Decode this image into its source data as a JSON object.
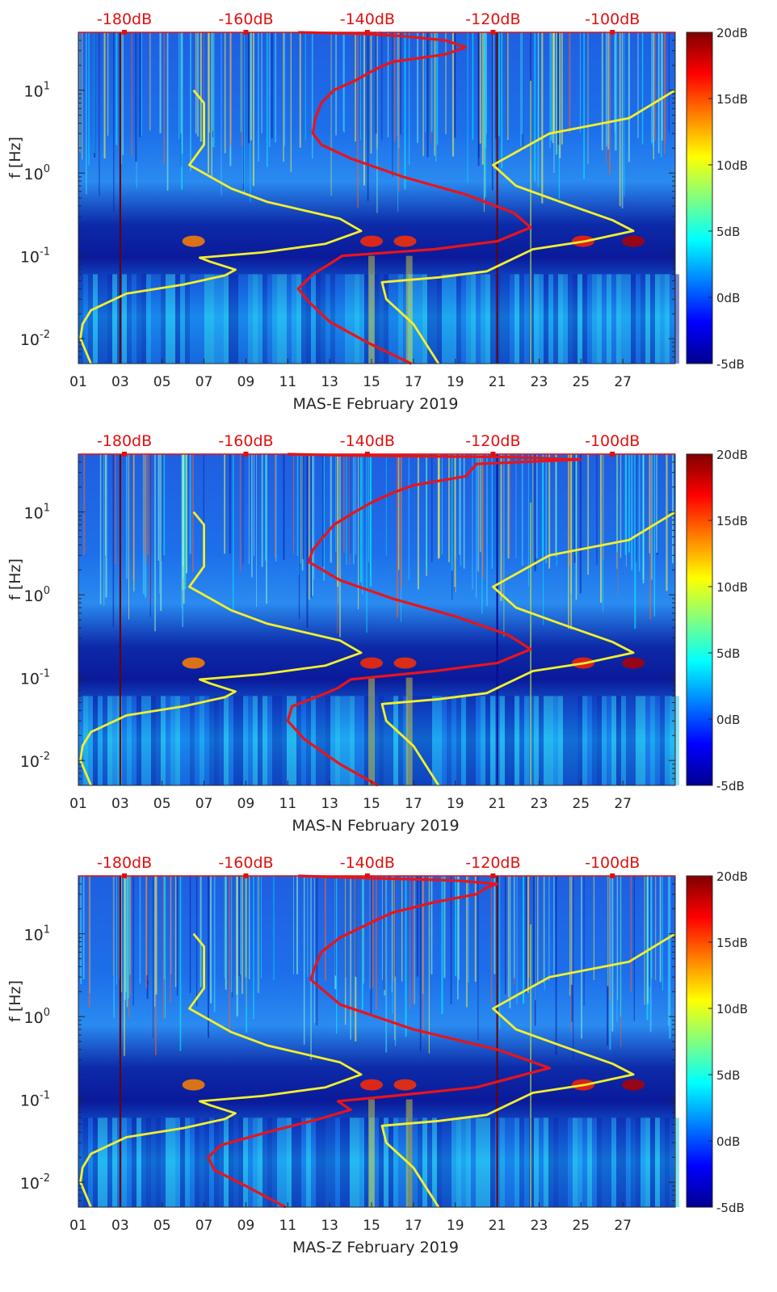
{
  "colormap": [
    "#00008f",
    "#0000ff",
    "#0080ff",
    "#00ffff",
    "#80ff80",
    "#ffff00",
    "#ff8000",
    "#ff0000",
    "#800000"
  ],
  "accent": {
    "red_line": "#e8141a",
    "yellow_line": "#f2ef2f",
    "top_axis_text": "#e01010"
  },
  "chart_data": [
    {
      "type": "heatmap",
      "title": "",
      "xlabel": "MAS-E February 2019",
      "ylabel": "f [Hz]",
      "xlim": [
        1,
        29.5
      ],
      "ylim": [
        0.005,
        50
      ],
      "yscale": "log",
      "x_ticks": [
        1,
        3,
        5,
        7,
        9,
        11,
        13,
        15,
        17,
        19,
        21,
        23,
        25,
        27
      ],
      "x_tick_labels": [
        "01",
        "03",
        "05",
        "07",
        "09",
        "11",
        "13",
        "15",
        "17",
        "19",
        "21",
        "23",
        "25",
        "27"
      ],
      "y_ticks": [
        0.01,
        0.1,
        1,
        10
      ],
      "y_tick_mantissa": [
        "10",
        "10",
        "10",
        "10"
      ],
      "y_tick_exponents": [
        "-2",
        "-1",
        "0",
        "1"
      ],
      "top_axis_ticks": [
        3.2,
        9,
        14.8,
        20.8,
        26.5
      ],
      "top_axis_labels": [
        "-180dB",
        "-160dB",
        "-140dB",
        "-120dB",
        "-100dB"
      ],
      "colorbar": {
        "range": [
          -5,
          20
        ],
        "ticks": [
          -5,
          0,
          5,
          10,
          15,
          20
        ],
        "labels": [
          "-5dB",
          "0dB",
          "5dB",
          "10dB",
          "15dB",
          "20dB"
        ]
      },
      "series": [
        {
          "name": "median PSD (red)",
          "color": "red",
          "points": [
            [
              16.9,
              0.005
            ],
            [
              14.8,
              0.009
            ],
            [
              13.0,
              0.016
            ],
            [
              12.0,
              0.028
            ],
            [
              11.5,
              0.04
            ],
            [
              12.2,
              0.06
            ],
            [
              13.0,
              0.08
            ],
            [
              13.6,
              0.1
            ],
            [
              18.0,
              0.12
            ],
            [
              21.0,
              0.15
            ],
            [
              22.6,
              0.22
            ],
            [
              21.8,
              0.33
            ],
            [
              19.5,
              0.55
            ],
            [
              16.5,
              0.9
            ],
            [
              14.0,
              1.5
            ],
            [
              12.6,
              2.2
            ],
            [
              12.2,
              3.0
            ],
            [
              12.3,
              4.5
            ],
            [
              12.6,
              7.0
            ],
            [
              13.2,
              10.0
            ],
            [
              14.2,
              13.0
            ],
            [
              15.2,
              18.0
            ],
            [
              16.0,
              22.0
            ],
            [
              18.5,
              27.0
            ],
            [
              19.5,
              33.0
            ],
            [
              18.5,
              40.0
            ],
            [
              16.5,
              45.0
            ],
            [
              14.5,
              48.0
            ],
            [
              11.5,
              50.0
            ]
          ]
        },
        {
          "name": "reference curve left (yellow)",
          "color": "yellow",
          "points": [
            [
              1.6,
              0.005
            ],
            [
              1.1,
              0.01
            ],
            [
              1.2,
              0.015
            ],
            [
              1.6,
              0.022
            ],
            [
              3.3,
              0.035
            ],
            [
              6.0,
              0.045
            ],
            [
              8.0,
              0.058
            ],
            [
              8.5,
              0.068
            ],
            [
              7.3,
              0.085
            ],
            [
              6.8,
              0.095
            ],
            [
              9.8,
              0.11
            ],
            [
              12.8,
              0.14
            ],
            [
              14.5,
              0.2
            ],
            [
              13.5,
              0.28
            ],
            [
              10.0,
              0.45
            ],
            [
              8.3,
              0.65
            ],
            [
              6.3,
              1.25
            ],
            [
              7.0,
              2.2
            ],
            [
              7.0,
              5.0
            ],
            [
              7.0,
              7.0
            ],
            [
              6.5,
              10.0
            ]
          ]
        },
        {
          "name": "reference curve right (yellow)",
          "color": "yellow",
          "points": [
            [
              18.2,
              0.005
            ],
            [
              17.0,
              0.015
            ],
            [
              15.7,
              0.03
            ],
            [
              15.5,
              0.048
            ],
            [
              18.2,
              0.055
            ],
            [
              20.5,
              0.065
            ],
            [
              22.7,
              0.12
            ],
            [
              25.2,
              0.15
            ],
            [
              27.5,
              0.2
            ],
            [
              26.5,
              0.27
            ],
            [
              24.0,
              0.45
            ],
            [
              21.9,
              0.7
            ],
            [
              20.8,
              1.25
            ],
            [
              23.5,
              3.0
            ],
            [
              27.3,
              4.6
            ],
            [
              29.5,
              10.0
            ]
          ]
        }
      ]
    },
    {
      "type": "heatmap",
      "title": "",
      "xlabel": "MAS-N February 2019",
      "ylabel": "f [Hz]",
      "xlim": [
        1,
        29.5
      ],
      "ylim": [
        0.005,
        50
      ],
      "yscale": "log",
      "x_ticks": [
        1,
        3,
        5,
        7,
        9,
        11,
        13,
        15,
        17,
        19,
        21,
        23,
        25,
        27
      ],
      "x_tick_labels": [
        "01",
        "03",
        "05",
        "07",
        "09",
        "11",
        "13",
        "15",
        "17",
        "19",
        "21",
        "23",
        "25",
        "27"
      ],
      "y_ticks": [
        0.01,
        0.1,
        1,
        10
      ],
      "y_tick_mantissa": [
        "10",
        "10",
        "10",
        "10"
      ],
      "y_tick_exponents": [
        "-2",
        "-1",
        "0",
        "1"
      ],
      "top_axis_ticks": [
        3.2,
        9,
        14.8,
        20.8,
        26.5
      ],
      "top_axis_labels": [
        "-180dB",
        "-160dB",
        "-140dB",
        "-120dB",
        "-100dB"
      ],
      "colorbar": {
        "range": [
          -5,
          20
        ],
        "ticks": [
          -5,
          0,
          5,
          10,
          15,
          20
        ],
        "labels": [
          "-5dB",
          "0dB",
          "5dB",
          "10dB",
          "15dB",
          "20dB"
        ]
      },
      "series": [
        {
          "name": "median PSD (red)",
          "color": "red",
          "points": [
            [
              15.3,
              0.005
            ],
            [
              13.5,
              0.009
            ],
            [
              11.8,
              0.018
            ],
            [
              11.0,
              0.03
            ],
            [
              11.2,
              0.045
            ],
            [
              12.5,
              0.06
            ],
            [
              13.4,
              0.075
            ],
            [
              14.0,
              0.095
            ],
            [
              18.0,
              0.12
            ],
            [
              21.0,
              0.15
            ],
            [
              22.6,
              0.22
            ],
            [
              21.5,
              0.33
            ],
            [
              19.0,
              0.55
            ],
            [
              16.0,
              0.9
            ],
            [
              13.5,
              1.5
            ],
            [
              12.0,
              2.5
            ],
            [
              12.2,
              3.5
            ],
            [
              12.7,
              5.0
            ],
            [
              13.2,
              7.0
            ],
            [
              14.2,
              10.0
            ],
            [
              15.0,
              13.0
            ],
            [
              16.0,
              17.0
            ],
            [
              17.0,
              21.0
            ],
            [
              19.5,
              27.0
            ],
            [
              19.8,
              33.0
            ],
            [
              20.0,
              38.0
            ],
            [
              25.0,
              43.0
            ],
            [
              21.5,
              46.0
            ],
            [
              14.0,
              48.0
            ],
            [
              11.0,
              50.0
            ]
          ]
        },
        {
          "name": "reference curve left (yellow)",
          "color": "yellow",
          "points": [
            [
              1.6,
              0.005
            ],
            [
              1.1,
              0.01
            ],
            [
              1.2,
              0.015
            ],
            [
              1.6,
              0.022
            ],
            [
              3.3,
              0.035
            ],
            [
              6.0,
              0.045
            ],
            [
              8.0,
              0.058
            ],
            [
              8.5,
              0.068
            ],
            [
              7.3,
              0.085
            ],
            [
              6.8,
              0.095
            ],
            [
              9.8,
              0.11
            ],
            [
              12.8,
              0.14
            ],
            [
              14.5,
              0.2
            ],
            [
              13.5,
              0.28
            ],
            [
              10.0,
              0.45
            ],
            [
              8.3,
              0.65
            ],
            [
              6.3,
              1.25
            ],
            [
              7.0,
              2.2
            ],
            [
              7.0,
              5.0
            ],
            [
              7.0,
              7.0
            ],
            [
              6.5,
              10.0
            ]
          ]
        },
        {
          "name": "reference curve right (yellow)",
          "color": "yellow",
          "points": [
            [
              18.2,
              0.005
            ],
            [
              17.0,
              0.015
            ],
            [
              15.7,
              0.03
            ],
            [
              15.5,
              0.048
            ],
            [
              18.2,
              0.055
            ],
            [
              20.5,
              0.065
            ],
            [
              22.7,
              0.12
            ],
            [
              25.2,
              0.15
            ],
            [
              27.5,
              0.2
            ],
            [
              26.5,
              0.27
            ],
            [
              24.0,
              0.45
            ],
            [
              21.9,
              0.7
            ],
            [
              20.8,
              1.25
            ],
            [
              23.5,
              3.0
            ],
            [
              27.3,
              4.6
            ],
            [
              29.5,
              10.0
            ]
          ]
        }
      ]
    },
    {
      "type": "heatmap",
      "title": "",
      "xlabel": "MAS-Z February 2019",
      "ylabel": "f [Hz]",
      "xlim": [
        1,
        29.5
      ],
      "ylim": [
        0.005,
        50
      ],
      "yscale": "log",
      "x_ticks": [
        1,
        3,
        5,
        7,
        9,
        11,
        13,
        15,
        17,
        19,
        21,
        23,
        25,
        27
      ],
      "x_tick_labels": [
        "01",
        "03",
        "05",
        "07",
        "09",
        "11",
        "13",
        "15",
        "17",
        "19",
        "21",
        "23",
        "25",
        "27"
      ],
      "y_ticks": [
        0.01,
        0.1,
        1,
        10
      ],
      "y_tick_mantissa": [
        "10",
        "10",
        "10",
        "10"
      ],
      "y_tick_exponents": [
        "-2",
        "-1",
        "0",
        "1"
      ],
      "top_axis_ticks": [
        3.2,
        9,
        14.8,
        20.8,
        26.5
      ],
      "top_axis_labels": [
        "-180dB",
        "-160dB",
        "-140dB",
        "-120dB",
        "-100dB"
      ],
      "colorbar": {
        "range": [
          -5,
          20
        ],
        "ticks": [
          -5,
          0,
          5,
          10,
          15,
          20
        ],
        "labels": [
          "-5dB",
          "0dB",
          "5dB",
          "10dB",
          "15dB",
          "20dB"
        ]
      },
      "series": [
        {
          "name": "median PSD (red)",
          "color": "red",
          "points": [
            [
              10.9,
              0.005
            ],
            [
              9.0,
              0.009
            ],
            [
              7.5,
              0.014
            ],
            [
              7.2,
              0.02
            ],
            [
              7.8,
              0.028
            ],
            [
              10.0,
              0.04
            ],
            [
              12.5,
              0.058
            ],
            [
              14.0,
              0.075
            ],
            [
              13.4,
              0.095
            ],
            [
              16.0,
              0.11
            ],
            [
              20.0,
              0.14
            ],
            [
              23.5,
              0.24
            ],
            [
              21.0,
              0.4
            ],
            [
              17.0,
              0.7
            ],
            [
              13.5,
              1.4
            ],
            [
              12.1,
              2.8
            ],
            [
              12.3,
              4.0
            ],
            [
              12.6,
              6.0
            ],
            [
              13.5,
              9.0
            ],
            [
              14.8,
              13.0
            ],
            [
              16.0,
              18.0
            ],
            [
              18.0,
              24.0
            ],
            [
              20.0,
              30.0
            ],
            [
              20.5,
              36.0
            ],
            [
              21.0,
              40.0
            ],
            [
              19.0,
              44.0
            ],
            [
              15.0,
              47.0
            ],
            [
              11.5,
              50.0
            ]
          ]
        },
        {
          "name": "reference curve left (yellow)",
          "color": "yellow",
          "points": [
            [
              1.6,
              0.005
            ],
            [
              1.1,
              0.01
            ],
            [
              1.2,
              0.015
            ],
            [
              1.6,
              0.022
            ],
            [
              3.3,
              0.035
            ],
            [
              6.0,
              0.045
            ],
            [
              8.0,
              0.058
            ],
            [
              8.5,
              0.068
            ],
            [
              7.3,
              0.085
            ],
            [
              6.8,
              0.095
            ],
            [
              9.8,
              0.11
            ],
            [
              12.8,
              0.14
            ],
            [
              14.5,
              0.2
            ],
            [
              13.5,
              0.28
            ],
            [
              10.0,
              0.45
            ],
            [
              8.3,
              0.65
            ],
            [
              6.3,
              1.25
            ],
            [
              7.0,
              2.2
            ],
            [
              7.0,
              5.0
            ],
            [
              7.0,
              7.0
            ],
            [
              6.5,
              10.0
            ]
          ]
        },
        {
          "name": "reference curve right (yellow)",
          "color": "yellow",
          "points": [
            [
              18.2,
              0.005
            ],
            [
              17.0,
              0.015
            ],
            [
              15.7,
              0.03
            ],
            [
              15.5,
              0.048
            ],
            [
              18.2,
              0.055
            ],
            [
              20.5,
              0.065
            ],
            [
              22.7,
              0.12
            ],
            [
              25.2,
              0.15
            ],
            [
              27.5,
              0.2
            ],
            [
              26.5,
              0.27
            ],
            [
              24.0,
              0.45
            ],
            [
              21.9,
              0.7
            ],
            [
              20.8,
              1.25
            ],
            [
              23.5,
              3.0
            ],
            [
              27.3,
              4.6
            ],
            [
              29.5,
              10.0
            ]
          ]
        }
      ]
    }
  ]
}
